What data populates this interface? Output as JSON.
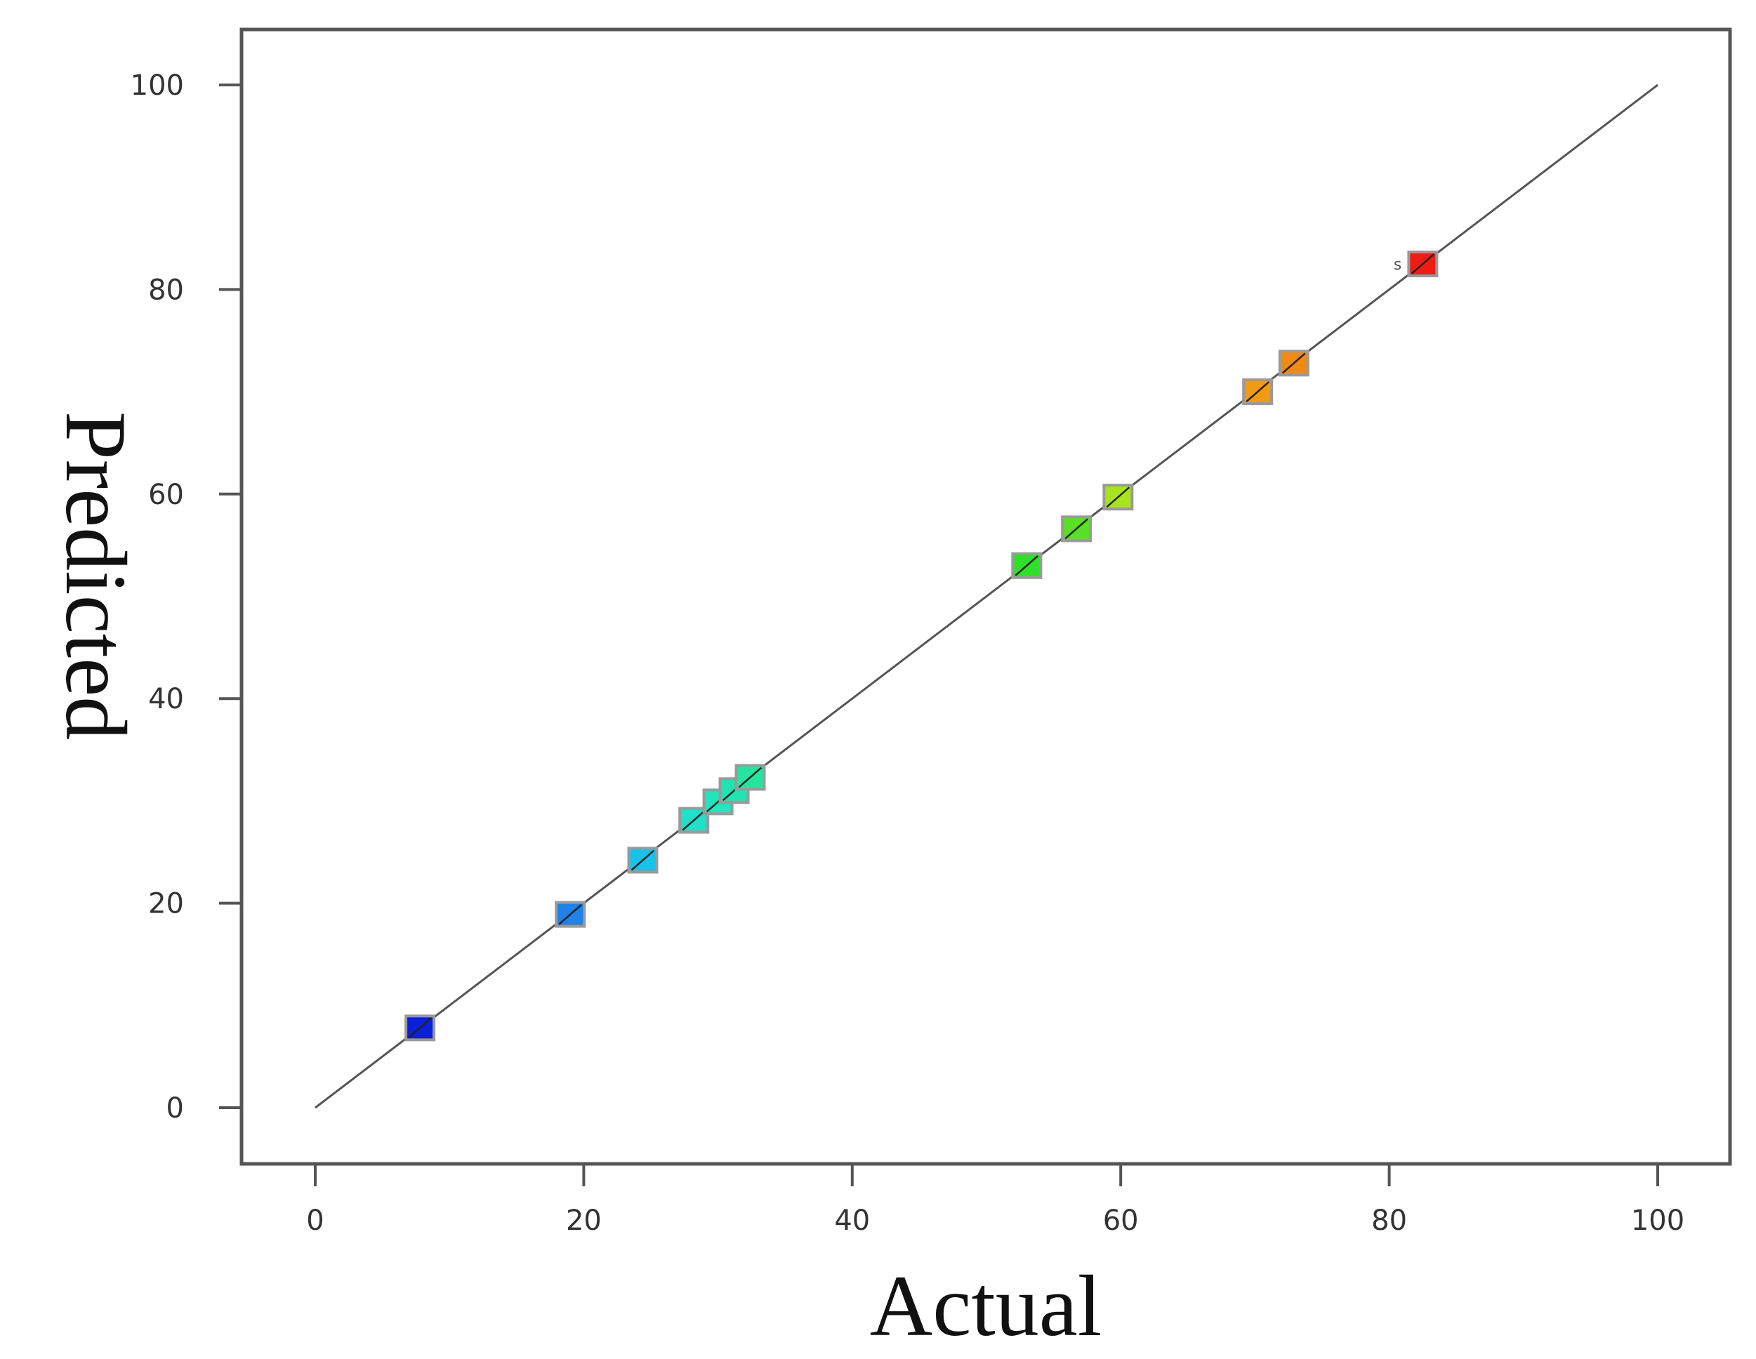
{
  "chart_data": {
    "type": "scatter",
    "xlabel": "Actual",
    "ylabel": "Predicted",
    "xlim": [
      0,
      100
    ],
    "ylim": [
      0,
      100
    ],
    "x_ticks": [
      "0",
      "20",
      "40",
      "60",
      "80",
      "100"
    ],
    "y_ticks": [
      "0",
      "20",
      "40",
      "60",
      "80",
      "100"
    ],
    "grid": false,
    "reference_line": {
      "from": [
        0,
        0
      ],
      "to": [
        100,
        100
      ],
      "color": "#555555"
    },
    "points": [
      {
        "x": 7.8,
        "y": 7.8,
        "color": "#0b1fd6"
      },
      {
        "x": 19.0,
        "y": 18.9,
        "color": "#1e82e8"
      },
      {
        "x": 24.4,
        "y": 24.2,
        "color": "#18c2e8"
      },
      {
        "x": 28.2,
        "y": 28.1,
        "color": "#1fe0c8"
      },
      {
        "x": 30.0,
        "y": 29.9,
        "color": "#22e4bd"
      },
      {
        "x": 31.2,
        "y": 31.0,
        "color": "#22e4b0"
      },
      {
        "x": 32.4,
        "y": 32.3,
        "color": "#26e4a0"
      },
      {
        "x": 53.0,
        "y": 53.0,
        "color": "#2fe02a"
      },
      {
        "x": 56.7,
        "y": 56.6,
        "color": "#5ae024"
      },
      {
        "x": 59.8,
        "y": 59.7,
        "color": "#a8e41e"
      },
      {
        "x": 70.2,
        "y": 70.0,
        "color": "#f39a14"
      },
      {
        "x": 72.9,
        "y": 72.8,
        "color": "#f08a12"
      },
      {
        "x": 82.5,
        "y": 82.5,
        "color": "#ee1c14",
        "label": "s"
      }
    ]
  }
}
